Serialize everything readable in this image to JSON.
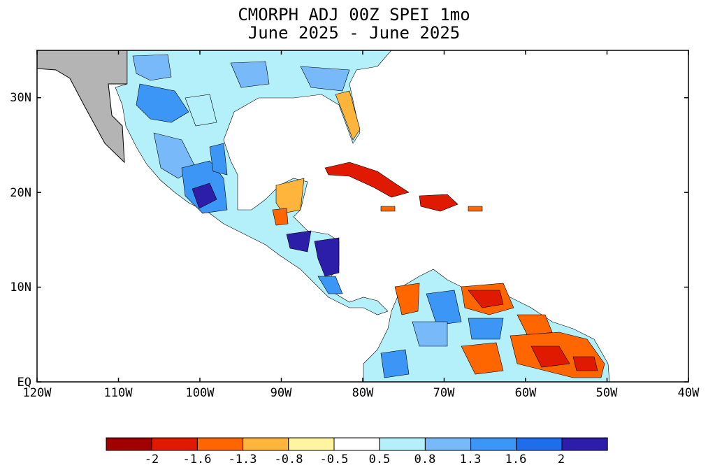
{
  "title": {
    "line1": "CMORPH ADJ 00Z SPEI 1mo",
    "line2": "June 2025 - June 2025"
  },
  "map": {
    "lon_range": [
      -120,
      -40
    ],
    "lat_range": [
      0,
      35
    ],
    "x_ticks": [
      "120W",
      "110W",
      "100W",
      "90W",
      "80W",
      "70W",
      "60W",
      "50W",
      "40W"
    ],
    "y_ticks": [
      "EQ",
      "10N",
      "20N",
      "30N"
    ],
    "no_data_color": "#b4b4b4"
  },
  "colorbar": {
    "labels": [
      "-2",
      "-1.6",
      "-1.3",
      "-0.8",
      "-0.5",
      "0.5",
      "0.8",
      "1.3",
      "1.6",
      "2"
    ],
    "colors": [
      "#a00000",
      "#e01a00",
      "#ff6600",
      "#ffb43c",
      "#fff5a0",
      "#ffffff",
      "#b4f0fa",
      "#78b9fa",
      "#3c96f5",
      "#1e6eeb",
      "#2d1eaa"
    ]
  }
}
